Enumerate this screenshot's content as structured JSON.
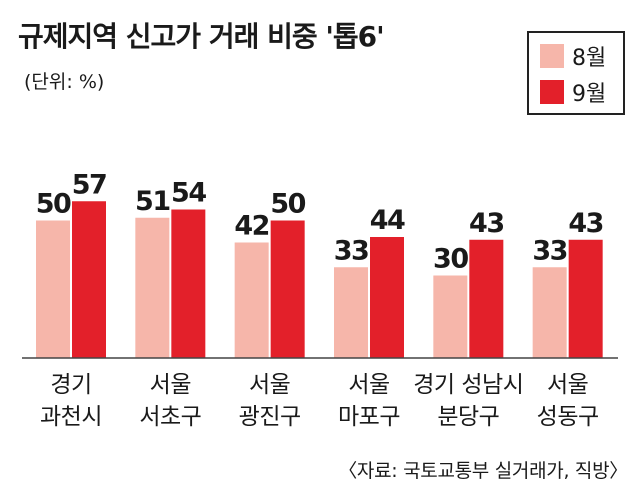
{
  "title": "규제지역 신고가 거래 비중 '톱6'",
  "unit_label": "(단위: %)",
  "source": "〈자료: 국토교통부 실거래가, 직방〉",
  "colors": {
    "aug": "#f6b6aa",
    "sep": "#e3202a",
    "frame": "#222222",
    "baseline": "#444444"
  },
  "chart_data": {
    "type": "bar",
    "title": "규제지역 신고가 거래 비중 '톱6'",
    "unit": "%",
    "categories": [
      [
        "경기",
        "과천시"
      ],
      [
        "서울",
        "서초구"
      ],
      [
        "서울",
        "광진구"
      ],
      [
        "서울",
        "마포구"
      ],
      [
        "경기 성남시",
        "분당구"
      ],
      [
        "서울",
        "성동구"
      ]
    ],
    "series": [
      {
        "name": "8월",
        "values": [
          50,
          51,
          42,
          33,
          30,
          33
        ]
      },
      {
        "name": "9월",
        "values": [
          57,
          54,
          50,
          44,
          43,
          43
        ]
      }
    ],
    "ylim": [
      0,
      85
    ],
    "legend": "top-right",
    "grid": false
  }
}
